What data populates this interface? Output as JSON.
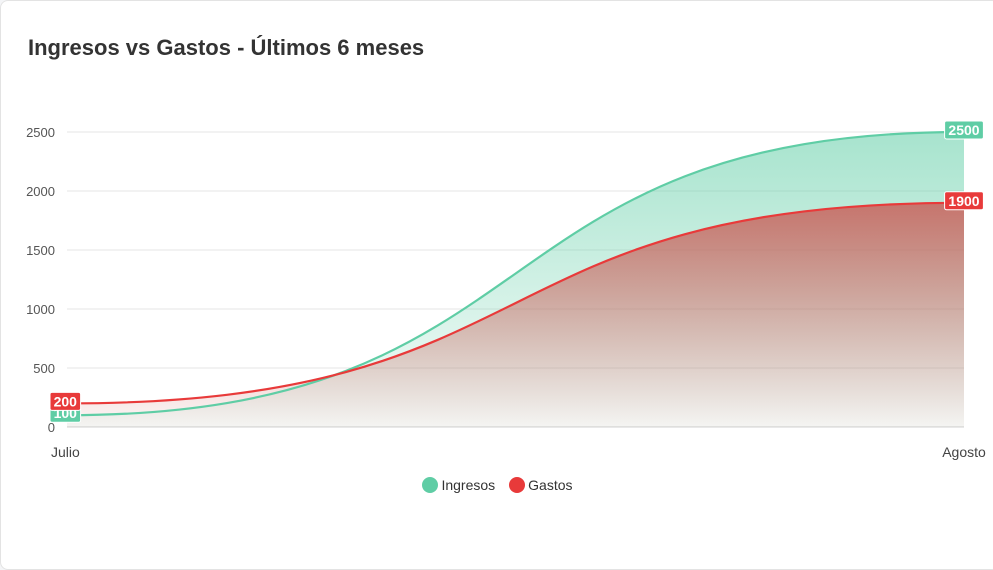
{
  "title": "Ingresos vs Gastos - Últimos 6 meses",
  "colors": {
    "ingresos": "#5fcda5",
    "gastos": "#e83a3a",
    "grid": "#e6e6e6",
    "axis": "#d0d0d0"
  },
  "chart_data": {
    "type": "area",
    "title": "Ingresos vs Gastos - Últimos 6 meses",
    "categories": [
      "Julio",
      "Agosto"
    ],
    "y_ticks": [
      "0",
      "500",
      "1000",
      "1500",
      "2000",
      "2500"
    ],
    "ylim": [
      0,
      2500
    ],
    "grid": true,
    "legend_position": "bottom-center",
    "series": [
      {
        "name": "Ingresos",
        "values": [
          100,
          2500
        ],
        "labels": [
          "100",
          "2500"
        ]
      },
      {
        "name": "Gastos",
        "values": [
          200,
          1900
        ],
        "labels": [
          "200",
          "1900"
        ]
      }
    ]
  }
}
